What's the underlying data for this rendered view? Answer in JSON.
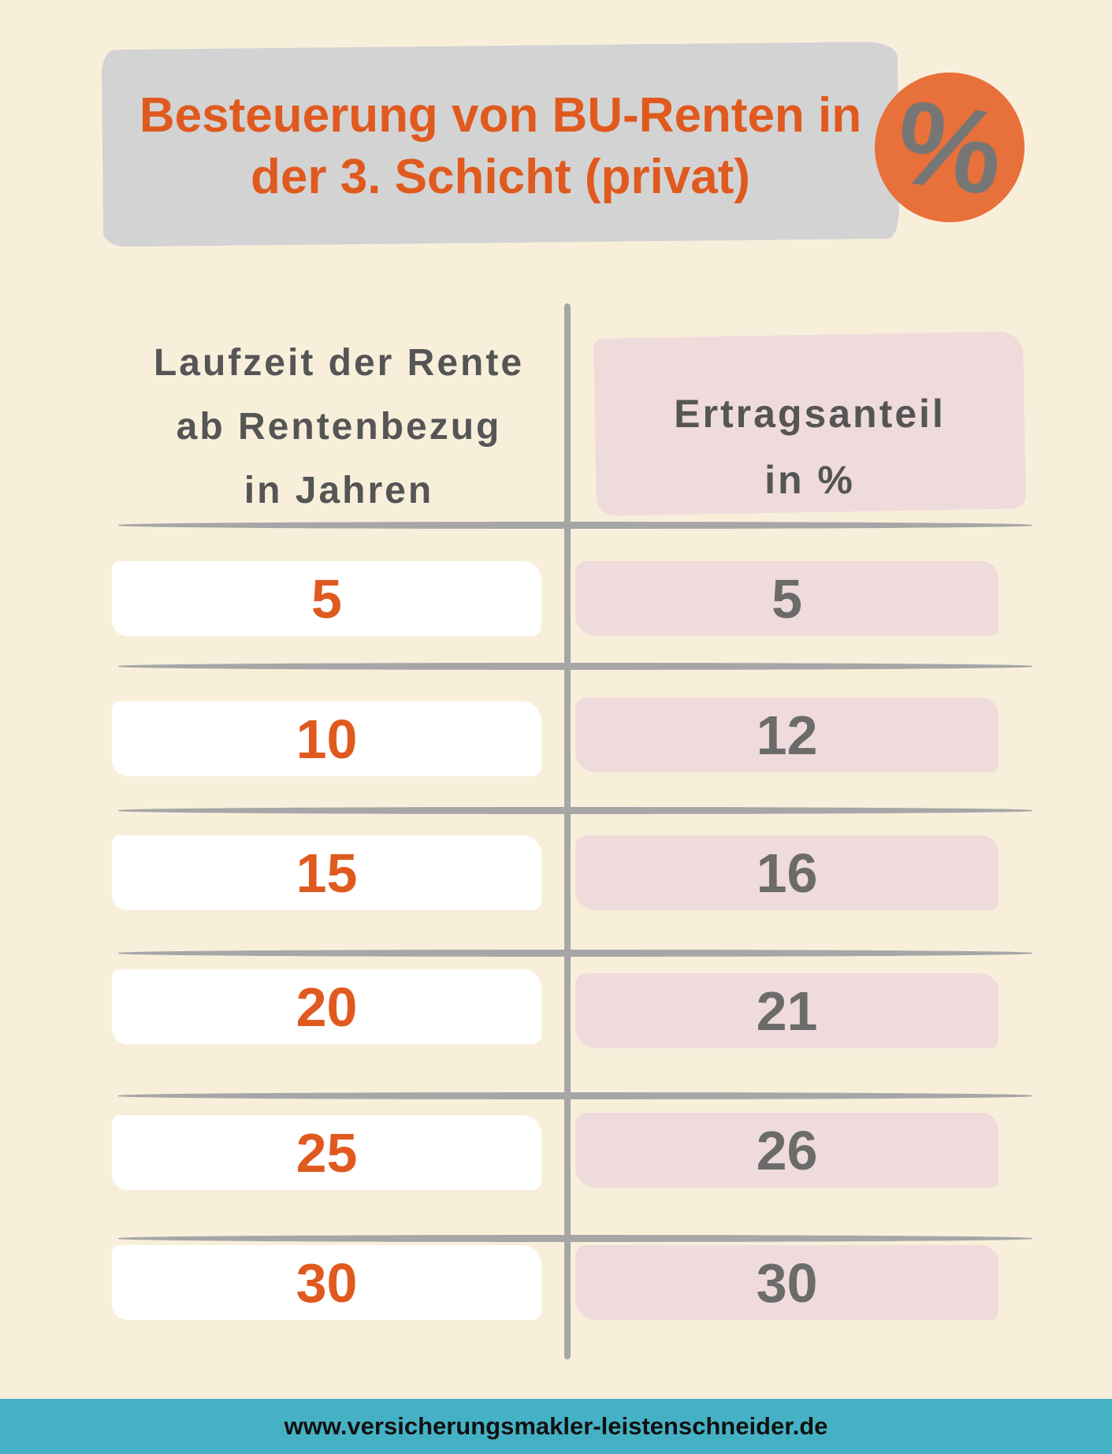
{
  "title": {
    "line1": "Besteuerung von BU-Renten in",
    "line2": "der 3. Schicht (privat)"
  },
  "badge": {
    "symbol": "%",
    "icon": "percent-icon"
  },
  "table": {
    "header_left": {
      "line1": "Laufzeit der Rente",
      "line2": "ab Rentenbezug",
      "line3": "in Jahren"
    },
    "header_right": {
      "line1": "Ertragsanteil",
      "line2": "in %"
    },
    "rows": [
      {
        "laufzeit": "5",
        "ertragsanteil": "5"
      },
      {
        "laufzeit": "10",
        "ertragsanteil": "12"
      },
      {
        "laufzeit": "15",
        "ertragsanteil": "16"
      },
      {
        "laufzeit": "20",
        "ertragsanteil": "21"
      },
      {
        "laufzeit": "25",
        "ertragsanteil": "26"
      },
      {
        "laufzeit": "30",
        "ertragsanteil": "30"
      }
    ]
  },
  "footer": {
    "url": "www.versicherungsmakler-leistenschneider.de"
  },
  "colors": {
    "background": "#f8efdb",
    "accent": "#e05a1f",
    "footer": "#45b1c4",
    "pink": "#efdbdb"
  }
}
